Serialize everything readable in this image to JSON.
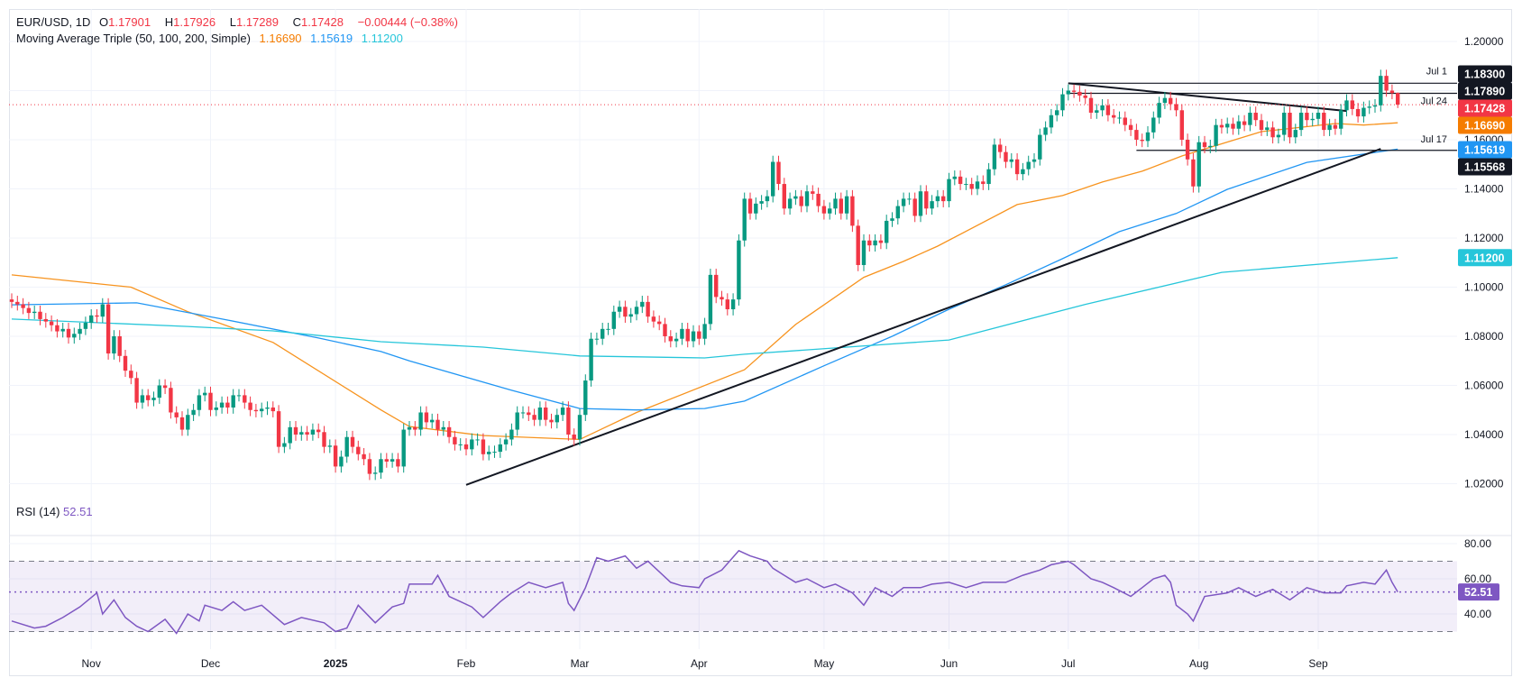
{
  "header": {
    "symbol": "EUR/USD, 1D",
    "open_label": "O",
    "open": "1.17901",
    "high_label": "H",
    "high": "1.17926",
    "low_label": "L",
    "low": "1.17289",
    "close_label": "C",
    "close": "1.17428",
    "change": "−0.00444 (−0.38%)"
  },
  "indicator": {
    "name": "Moving Average Triple (50, 100, 200, Simple)",
    "ma50": "1.16690",
    "ma100": "1.15619",
    "ma200": "1.11200"
  },
  "rsi_legend": {
    "name": "RSI (14)",
    "value": "52.51"
  },
  "colors": {
    "up": "#089981",
    "down": "#f23645",
    "ma50": "#f7931e",
    "ma100": "#2196f3",
    "ma200": "#26c6da",
    "rsi": "#7e57c2",
    "trendline": "#131722"
  },
  "chart_data": [
    {
      "type": "candlestick",
      "title": "EUR/USD, 1D",
      "ylim": [
        1.0,
        1.21
      ],
      "grid": true,
      "price_axis_labels": [
        "1.20000",
        "1.16000",
        "1.14000",
        "1.12000",
        "1.10000",
        "1.08000",
        "1.06000",
        "1.04000",
        "1.02000"
      ],
      "price_axis_values": [
        1.2,
        1.16,
        1.14,
        1.12,
        1.1,
        1.08,
        1.06,
        1.04,
        1.02
      ],
      "x_ticks": [
        {
          "label": "Nov",
          "bar": 14
        },
        {
          "label": "Dec",
          "bar": 35
        },
        {
          "label": "2025",
          "bar": 57
        },
        {
          "label": "Feb",
          "bar": 80
        },
        {
          "label": "Mar",
          "bar": 100
        },
        {
          "label": "Apr",
          "bar": 121
        },
        {
          "label": "May",
          "bar": 143
        },
        {
          "label": "Jun",
          "bar": 165
        },
        {
          "label": "Jul",
          "bar": 186
        },
        {
          "label": "Aug",
          "bar": 209
        },
        {
          "label": "Sep",
          "bar": 230
        }
      ],
      "closes": [
        1.094,
        1.093,
        1.0915,
        1.0895,
        1.09,
        1.087,
        1.086,
        1.0845,
        1.082,
        1.083,
        1.0795,
        1.081,
        1.083,
        1.0855,
        1.0885,
        1.088,
        1.093,
        1.073,
        1.08,
        1.072,
        1.066,
        1.063,
        1.053,
        1.056,
        1.054,
        1.055,
        1.06,
        1.059,
        1.049,
        1.047,
        1.042,
        1.048,
        1.05,
        1.056,
        1.057,
        1.05,
        1.051,
        1.053,
        1.051,
        1.056,
        1.056,
        1.053,
        1.05,
        1.0495,
        1.0505,
        1.051,
        1.0495,
        1.035,
        1.0365,
        1.043,
        1.04,
        1.041,
        1.04,
        1.042,
        1.041,
        1.035,
        1.0355,
        1.027,
        1.031,
        1.039,
        1.035,
        1.032,
        1.03,
        1.024,
        1.0245,
        1.03,
        1.029,
        1.03,
        1.027,
        1.042,
        1.043,
        1.042,
        1.049,
        1.045,
        1.046,
        1.042,
        1.043,
        1.039,
        1.036,
        1.036,
        1.034,
        1.038,
        1.038,
        1.032,
        1.033,
        1.033,
        1.036,
        1.038,
        1.042,
        1.049,
        1.049,
        1.048,
        1.046,
        1.051,
        1.046,
        1.045,
        1.048,
        1.051,
        1.04,
        1.038,
        1.048,
        1.062,
        1.079,
        1.079,
        1.083,
        1.083,
        1.09,
        1.092,
        1.088,
        1.089,
        1.092,
        1.094,
        1.088,
        1.086,
        1.085,
        1.08,
        1.078,
        1.079,
        1.083,
        1.078,
        1.082,
        1.079,
        1.085,
        1.105,
        1.096,
        1.095,
        1.091,
        1.095,
        1.119,
        1.136,
        1.13,
        1.134,
        1.135,
        1.137,
        1.151,
        1.142,
        1.132,
        1.136,
        1.137,
        1.133,
        1.139,
        1.138,
        1.133,
        1.13,
        1.132,
        1.136,
        1.13,
        1.137,
        1.125,
        1.109,
        1.119,
        1.117,
        1.119,
        1.118,
        1.127,
        1.128,
        1.133,
        1.136,
        1.136,
        1.129,
        1.139,
        1.132,
        1.135,
        1.137,
        1.135,
        1.144,
        1.145,
        1.142,
        1.142,
        1.14,
        1.143,
        1.142,
        1.148,
        1.158,
        1.155,
        1.151,
        1.152,
        1.146,
        1.148,
        1.151,
        1.152,
        1.162,
        1.165,
        1.17,
        1.172,
        1.1785,
        1.18,
        1.1795,
        1.178,
        1.177,
        1.171,
        1.172,
        1.174,
        1.17,
        1.169,
        1.169,
        1.166,
        1.164,
        1.16,
        1.1595,
        1.163,
        1.169,
        1.175,
        1.177,
        1.1745,
        1.172,
        1.16,
        1.152,
        1.141,
        1.159,
        1.157,
        1.1575,
        1.166,
        1.165,
        1.1665,
        1.1645,
        1.1675,
        1.166,
        1.171,
        1.168,
        1.164,
        1.165,
        1.161,
        1.162,
        1.171,
        1.161,
        1.164,
        1.171,
        1.168,
        1.1685,
        1.171,
        1.164,
        1.166,
        1.1645,
        1.172,
        1.176,
        1.1725,
        1.1695,
        1.173,
        1.1735,
        1.174,
        1.186,
        1.18,
        1.179,
        1.1743
      ],
      "last_candle": {
        "open": 1.17901,
        "high": 1.17926,
        "low": 1.17289,
        "close": 1.17428
      },
      "moving_averages": [
        {
          "name": "SMA 50",
          "color_key": "ma50",
          "last": "1.16690",
          "points_by_bar": [
            [
              0,
              1.105
            ],
            [
              21,
              1.1
            ],
            [
              31,
              1.09
            ],
            [
              46,
              1.0775
            ],
            [
              65,
              1.05
            ],
            [
              70,
              1.0433
            ],
            [
              83,
              1.0396
            ],
            [
              100,
              1.038
            ],
            [
              110,
              1.049
            ],
            [
              129,
              1.0664
            ],
            [
              138,
              1.0848
            ],
            [
              150,
              1.104
            ],
            [
              157,
              1.1105
            ],
            [
              163,
              1.1167
            ],
            [
              177,
              1.1336
            ],
            [
              185,
              1.1373
            ],
            [
              192,
              1.1428
            ],
            [
              199,
              1.1472
            ],
            [
              206,
              1.1534
            ],
            [
              220,
              1.1633
            ],
            [
              233,
              1.1666
            ],
            [
              238,
              1.166
            ],
            [
              244,
              1.1669
            ]
          ]
        },
        {
          "name": "SMA 100",
          "color_key": "ma100",
          "last": "1.15619",
          "points_by_bar": [
            [
              0,
              1.0928
            ],
            [
              22,
              1.0936
            ],
            [
              38,
              1.0866
            ],
            [
              54,
              1.0793
            ],
            [
              65,
              1.0738
            ],
            [
              70,
              1.07
            ],
            [
              88,
              1.058
            ],
            [
              100,
              1.0506
            ],
            [
              110,
              1.05
            ],
            [
              122,
              1.0506
            ],
            [
              129,
              1.0536
            ],
            [
              143,
              1.068
            ],
            [
              155,
              1.08
            ],
            [
              165,
              1.091
            ],
            [
              175,
              1.101
            ],
            [
              185,
              1.1116
            ],
            [
              195,
              1.1226
            ],
            [
              205,
              1.13
            ],
            [
              214,
              1.1398
            ],
            [
              228,
              1.1508
            ],
            [
              244,
              1.1562
            ]
          ]
        },
        {
          "name": "SMA 200",
          "color_key": "ma200",
          "last": "1.11200",
          "points_by_bar": [
            [
              0,
              1.087
            ],
            [
              31,
              1.084
            ],
            [
              46,
              1.0822
            ],
            [
              65,
              1.0778
            ],
            [
              83,
              1.0756
            ],
            [
              100,
              1.072
            ],
            [
              122,
              1.0712
            ],
            [
              129,
              1.0727
            ],
            [
              165,
              1.0785
            ],
            [
              189,
              1.093
            ],
            [
              213,
              1.106
            ],
            [
              244,
              1.112
            ]
          ]
        }
      ],
      "trendlines": [
        {
          "from": [
            80,
            1.0195
          ],
          "to": [
            241,
            1.1563
          ]
        },
        {
          "from": [
            186,
            1.183
          ],
          "to": [
            235,
            1.1717
          ]
        }
      ],
      "horizontal_levels": [
        {
          "label": "Jul 1",
          "value": 1.183,
          "from_bar": 186,
          "axis_label": "1.18300"
        },
        {
          "label": "Jul 24",
          "value": 1.1789,
          "from_bar": 186,
          "axis_label": "1.17890"
        },
        {
          "label": "Jul 17",
          "value": 1.15568,
          "from_bar": 198,
          "axis_label": "1.15568"
        }
      ],
      "current_price_label": "1.17428"
    },
    {
      "type": "line",
      "title": "RSI (14)",
      "ylim": [
        25,
        85
      ],
      "axis_labels": [
        "80.00",
        "60.00",
        "40.00"
      ],
      "axis_values": [
        80,
        60,
        40
      ],
      "bands": [
        30,
        70
      ],
      "current": 52.51,
      "current_label": "52.51",
      "points_by_bar": [
        [
          0,
          36
        ],
        [
          4,
          32
        ],
        [
          6,
          33
        ],
        [
          9,
          38
        ],
        [
          12,
          44
        ],
        [
          15,
          52
        ],
        [
          16,
          40
        ],
        [
          18,
          48
        ],
        [
          20,
          38
        ],
        [
          22,
          33
        ],
        [
          24,
          30
        ],
        [
          27,
          37
        ],
        [
          29,
          29
        ],
        [
          31,
          40
        ],
        [
          33,
          36
        ],
        [
          34,
          45
        ],
        [
          37,
          42
        ],
        [
          39,
          47
        ],
        [
          41,
          42
        ],
        [
          44,
          45
        ],
        [
          48,
          34
        ],
        [
          51,
          38
        ],
        [
          55,
          35
        ],
        [
          57,
          30
        ],
        [
          59,
          32
        ],
        [
          61,
          45
        ],
        [
          64,
          35
        ],
        [
          67,
          44
        ],
        [
          69,
          46
        ],
        [
          70,
          57
        ],
        [
          74,
          57
        ],
        [
          75,
          62
        ],
        [
          77,
          50
        ],
        [
          81,
          44
        ],
        [
          83,
          38
        ],
        [
          86,
          47
        ],
        [
          88,
          52
        ],
        [
          91,
          58
        ],
        [
          94,
          55
        ],
        [
          97,
          58
        ],
        [
          98,
          46
        ],
        [
          99,
          42
        ],
        [
          101,
          55
        ],
        [
          103,
          72
        ],
        [
          105,
          70
        ],
        [
          108,
          73
        ],
        [
          110,
          66
        ],
        [
          112,
          70
        ],
        [
          116,
          58
        ],
        [
          118,
          56
        ],
        [
          121,
          55
        ],
        [
          122,
          60
        ],
        [
          125,
          65
        ],
        [
          128,
          76
        ],
        [
          130,
          73
        ],
        [
          133,
          70
        ],
        [
          134,
          66
        ],
        [
          136,
          62
        ],
        [
          138,
          58
        ],
        [
          140,
          60
        ],
        [
          143,
          55
        ],
        [
          145,
          57
        ],
        [
          148,
          52
        ],
        [
          150,
          45
        ],
        [
          152,
          55
        ],
        [
          155,
          50
        ],
        [
          157,
          55
        ],
        [
          160,
          55
        ],
        [
          162,
          57
        ],
        [
          165,
          58
        ],
        [
          168,
          55
        ],
        [
          171,
          58
        ],
        [
          175,
          58
        ],
        [
          178,
          62
        ],
        [
          181,
          65
        ],
        [
          183,
          68
        ],
        [
          186,
          70
        ],
        [
          187,
          68
        ],
        [
          190,
          60
        ],
        [
          192,
          58
        ],
        [
          194,
          55
        ],
        [
          197,
          50
        ],
        [
          199,
          55
        ],
        [
          201,
          60
        ],
        [
          203,
          62
        ],
        [
          204,
          58
        ],
        [
          205,
          45
        ],
        [
          207,
          40
        ],
        [
          208,
          36
        ],
        [
          210,
          50
        ],
        [
          214,
          52
        ],
        [
          216,
          55
        ],
        [
          219,
          50
        ],
        [
          222,
          54
        ],
        [
          225,
          48
        ],
        [
          228,
          55
        ],
        [
          231,
          52
        ],
        [
          234,
          52
        ],
        [
          235,
          56
        ],
        [
          238,
          58
        ],
        [
          240,
          57
        ],
        [
          242,
          65
        ],
        [
          243,
          58
        ],
        [
          244,
          52.51
        ]
      ]
    }
  ]
}
